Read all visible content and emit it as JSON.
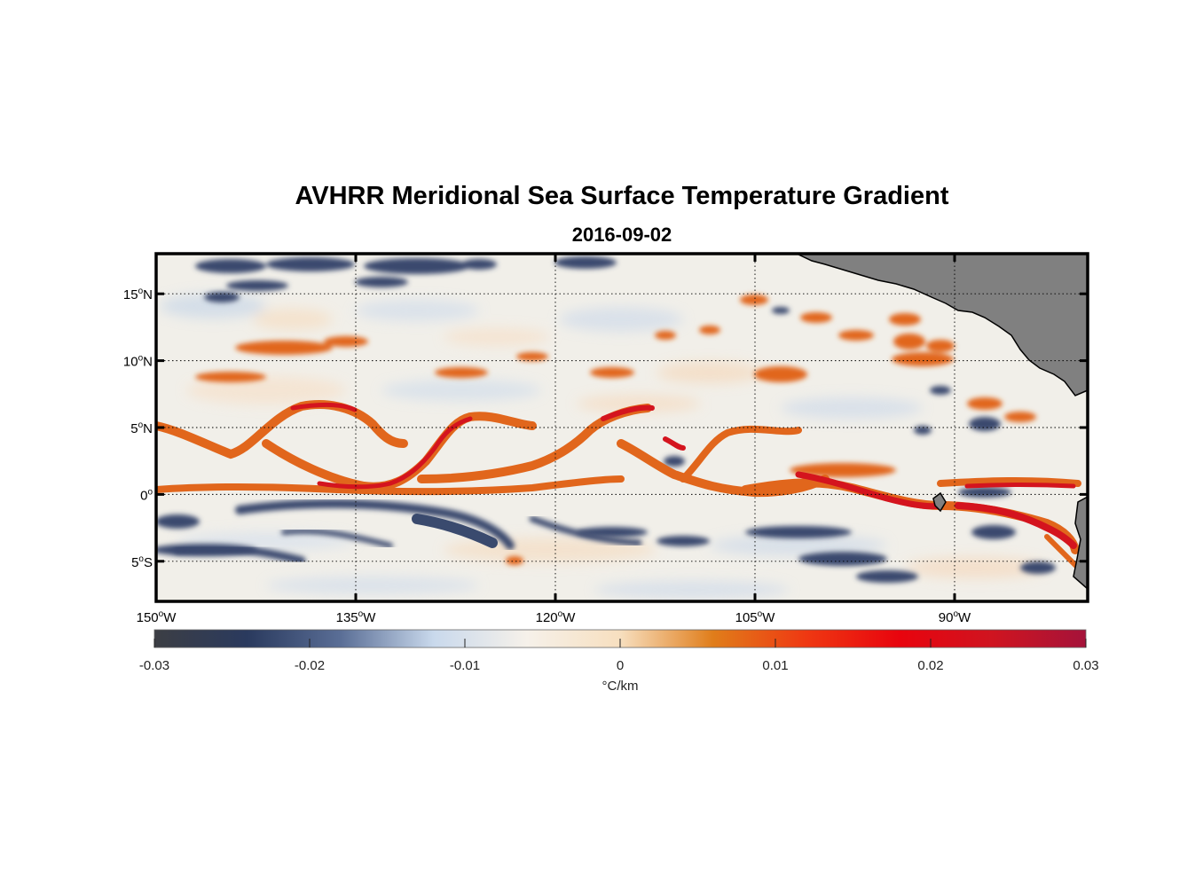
{
  "figure": {
    "title": "AVHRR Meridional Sea Surface Temperature Gradient",
    "date": "2016-09-02"
  },
  "map": {
    "lon_range": [
      -150,
      -80
    ],
    "lat_range": [
      -8,
      18
    ],
    "lat_ticks": [
      {
        "value": 15,
        "num": "15",
        "sup": "o",
        "hemi": "N"
      },
      {
        "value": 10,
        "num": "10",
        "sup": "o",
        "hemi": "N"
      },
      {
        "value": 5,
        "num": "5",
        "sup": "o",
        "hemi": "N"
      },
      {
        "value": 0,
        "num": "0",
        "sup": "o",
        "hemi": ""
      },
      {
        "value": -5,
        "num": "5",
        "sup": "o",
        "hemi": "S"
      }
    ],
    "lon_ticks": [
      {
        "value": -150,
        "num": "150",
        "sup": "o",
        "hemi": "W"
      },
      {
        "value": -135,
        "num": "135",
        "sup": "o",
        "hemi": "W"
      },
      {
        "value": -120,
        "num": "120",
        "sup": "o",
        "hemi": "W"
      },
      {
        "value": -105,
        "num": "105",
        "sup": "o",
        "hemi": "W"
      },
      {
        "value": -90,
        "num": "90",
        "sup": "o",
        "hemi": "W"
      }
    ],
    "ocean_color": "#f1efe9",
    "land_color": "#808080",
    "warm_color": "#e1661c",
    "hot_color": "#d4141e",
    "cold_color": "#3a4a6e"
  },
  "colorbar": {
    "ticks": [
      "-0.03",
      "-0.02",
      "-0.01",
      "0",
      "0.01",
      "0.02",
      "0.03"
    ],
    "unit": "°C/km",
    "stops": [
      "#3c3e44",
      "#2a3a5e",
      "#5a6e96",
      "#c9d9ec",
      "#f6f1ea",
      "#f7dfbf",
      "#e07d1a",
      "#ef3812",
      "#e8040e",
      "#cf1420",
      "#a5133a"
    ]
  }
}
